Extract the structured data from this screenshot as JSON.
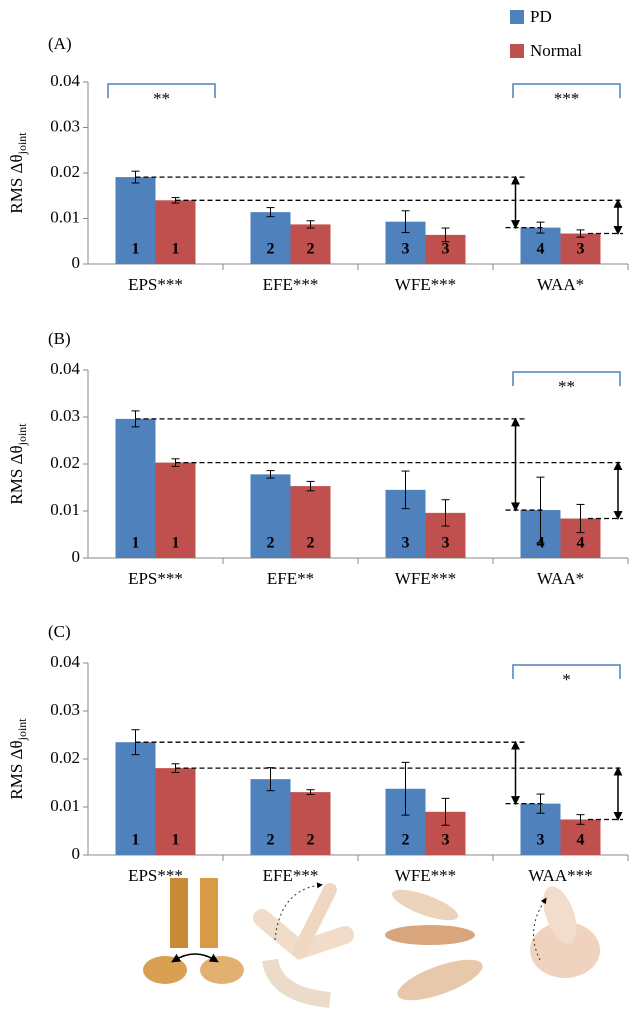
{
  "chart_data": [
    {
      "type": "bar",
      "panel_label": "(A)",
      "y_label": "RMS Δθ",
      "y_label_subscript": "joint",
      "categories": [
        "EPS***",
        "EFE***",
        "WFE***",
        "WAA*"
      ],
      "series": [
        {
          "name": "PD",
          "color": "#4f81bd",
          "values": [
            0.0191,
            0.0114,
            0.0093,
            0.008
          ],
          "errors": [
            0.0013,
            0.001,
            0.0024,
            0.0012
          ],
          "ranks": [
            1,
            2,
            3,
            4
          ]
        },
        {
          "name": "Normal",
          "color": "#c0504d",
          "values": [
            0.014,
            0.0087,
            0.0064,
            0.0067
          ],
          "errors": [
            0.0006,
            0.0008,
            0.0015,
            0.0008
          ],
          "ranks": [
            1,
            2,
            3,
            3
          ]
        }
      ],
      "significance": [
        "**",
        "***"
      ],
      "ylim": [
        0,
        0.04
      ],
      "yticks": [
        0,
        0.01,
        0.02,
        0.03,
        0.04
      ],
      "legend": "top-right"
    },
    {
      "type": "bar",
      "panel_label": "(B)",
      "y_label": "RMS Δθ",
      "y_label_subscript": "joint",
      "categories": [
        "EPS***",
        "EFE**",
        "WFE***",
        "WAA*"
      ],
      "series": [
        {
          "name": "PD",
          "color": "#4f81bd",
          "values": [
            0.0296,
            0.0178,
            0.0145,
            0.0102
          ],
          "errors": [
            0.0017,
            0.0008,
            0.004,
            0.007
          ],
          "ranks": [
            1,
            2,
            3,
            4
          ]
        },
        {
          "name": "Normal",
          "color": "#c0504d",
          "values": [
            0.0203,
            0.0153,
            0.0096,
            0.0084
          ],
          "errors": [
            0.0008,
            0.001,
            0.0028,
            0.003
          ],
          "ranks": [
            1,
            2,
            3,
            4
          ]
        }
      ],
      "significance": [
        "**"
      ],
      "ylim": [
        0,
        0.04
      ],
      "yticks": [
        0,
        0.01,
        0.02,
        0.03,
        0.04
      ]
    },
    {
      "type": "bar",
      "panel_label": "(C)",
      "y_label": "RMS Δθ",
      "y_label_subscript": "joint",
      "categories": [
        "EPS***",
        "EFE***",
        "WFE***",
        "WAA***"
      ],
      "series": [
        {
          "name": "PD",
          "color": "#4f81bd",
          "values": [
            0.0235,
            0.0158,
            0.0138,
            0.0107
          ],
          "errors": [
            0.0026,
            0.0024,
            0.0055,
            0.002
          ],
          "ranks": [
            1,
            2,
            2,
            3
          ]
        },
        {
          "name": "Normal",
          "color": "#c0504d",
          "values": [
            0.0181,
            0.0131,
            0.009,
            0.0074
          ],
          "errors": [
            0.0009,
            0.0005,
            0.0028,
            0.001
          ],
          "ranks": [
            1,
            2,
            3,
            4
          ]
        }
      ],
      "significance": [
        "*"
      ],
      "ylim": [
        0,
        0.04
      ],
      "yticks": [
        0,
        0.01,
        0.02,
        0.03,
        0.04
      ]
    }
  ]
}
